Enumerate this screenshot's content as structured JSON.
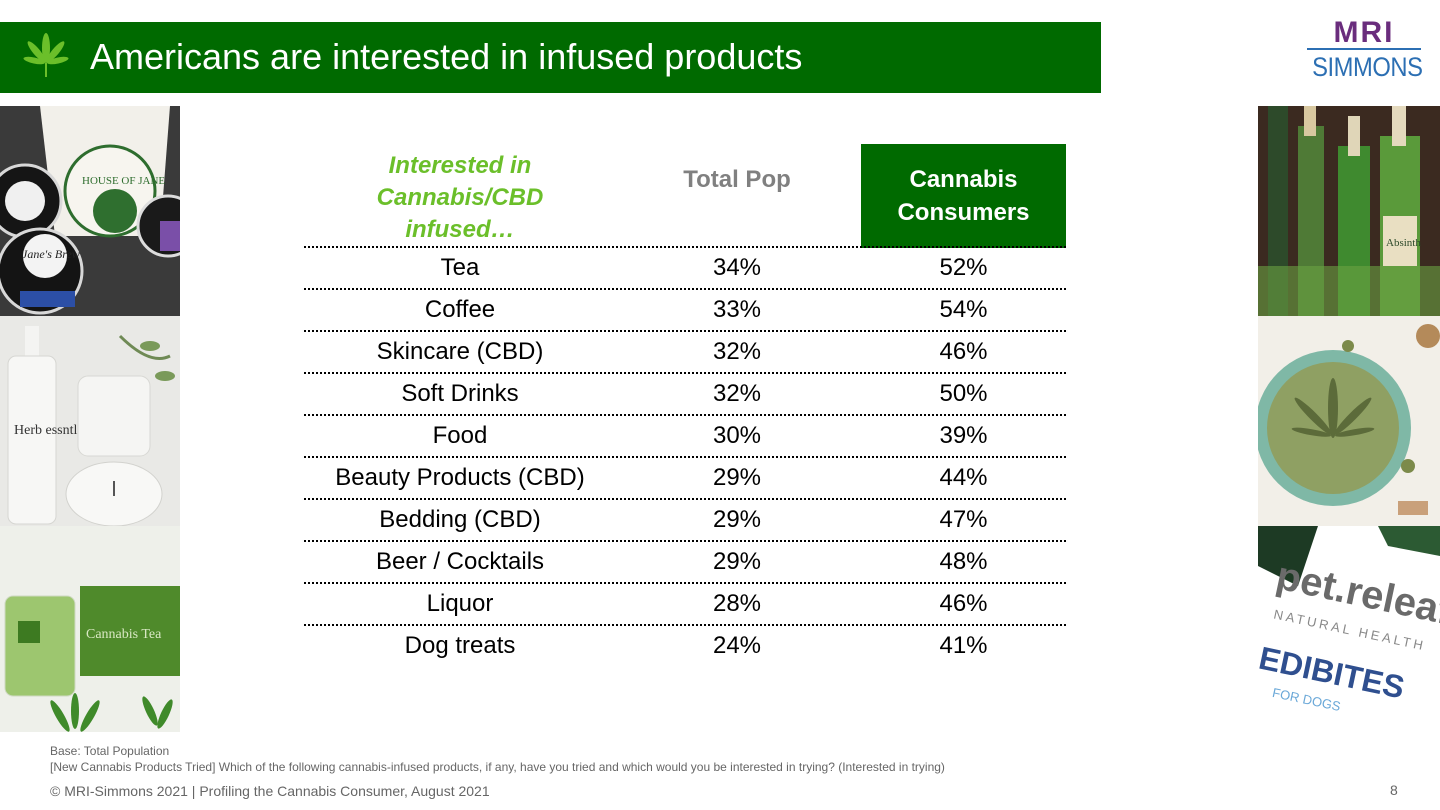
{
  "title": "Americans are interested in infused products",
  "logo": {
    "top": "MRI",
    "bottom": "SIMMONS"
  },
  "table": {
    "col_category": "Interested in Cannabis/CBD infused…",
    "col_total": "Total Pop",
    "col_cannabis": "Cannabis Consumers",
    "rows": [
      {
        "category": "Tea",
        "total": "34%",
        "cannabis": "52%"
      },
      {
        "category": "Coffee",
        "total": "33%",
        "cannabis": "54%"
      },
      {
        "category": "Skincare (CBD)",
        "total": "32%",
        "cannabis": "46%"
      },
      {
        "category": "Soft Drinks",
        "total": "32%",
        "cannabis": "50%"
      },
      {
        "category": "Food",
        "total": "30%",
        "cannabis": "39%"
      },
      {
        "category": "Beauty Products (CBD)",
        "total": "29%",
        "cannabis": "44%"
      },
      {
        "category": "Bedding (CBD)",
        "total": "29%",
        "cannabis": "47%"
      },
      {
        "category": "Beer / Cocktails",
        "total": "29%",
        "cannabis": "48%"
      },
      {
        "category": "Liquor",
        "total": "28%",
        "cannabis": "46%"
      },
      {
        "category": "Dog treats",
        "total": "24%",
        "cannabis": "41%"
      }
    ]
  },
  "photo_labels": {
    "house_of_jane": "HOUSE OF JANE",
    "janes_brew": "Jane's Brew",
    "herb_essntls": "Herb essntls",
    "cannabis_tea": "Cannabis Tea",
    "absinth": "Absinth",
    "pet_releaf": "pet.releaf",
    "natural_health": "NATURAL HEALTH",
    "edibites": "EDIBITES",
    "for_dogs": "FOR DOGS"
  },
  "footer": {
    "base": "Base: Total Population",
    "question": "[New Cannabis Products Tried] Which of the following cannabis-infused products, if any, have you tried and which would you be interested in trying? (Interested in trying)",
    "copyright": "©  MRI-Simmons 2021  |  Profiling the Cannabis Consumer, August 2021",
    "page": "8"
  },
  "colors": {
    "brand_green": "#006a00",
    "accent_green": "#6bbf2a",
    "grey": "#808080"
  }
}
